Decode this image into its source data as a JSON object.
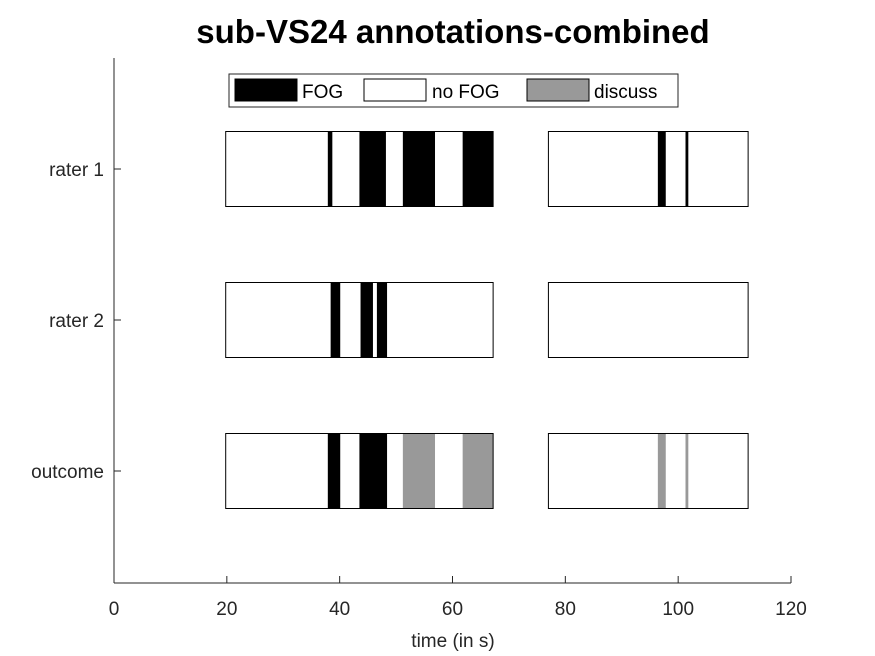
{
  "chart_data": {
    "type": "broken-bar",
    "title": "sub-VS24 annotations-combined",
    "xlabel": "time (in s)",
    "ylabel": "",
    "xlim": [
      0,
      120
    ],
    "xticks": [
      0,
      20,
      40,
      60,
      80,
      100,
      120
    ],
    "grid": false,
    "legend_position": "top-center",
    "legend": [
      {
        "label": "FOG",
        "color": "#000000"
      },
      {
        "label": "no FOG",
        "color": "#ffffff"
      },
      {
        "label": "discuss",
        "color": "#999999"
      }
    ],
    "windows": [
      [
        19.8,
        67.2
      ],
      [
        77.0,
        112.4
      ]
    ],
    "rows": [
      {
        "label": "rater 1",
        "segments": [
          {
            "start": 37.9,
            "end": 38.7,
            "class": "FOG"
          },
          {
            "start": 43.5,
            "end": 48.2,
            "class": "FOG"
          },
          {
            "start": 51.2,
            "end": 56.9,
            "class": "FOG"
          },
          {
            "start": 61.8,
            "end": 67.2,
            "class": "FOG"
          },
          {
            "start": 96.4,
            "end": 97.8,
            "class": "FOG"
          },
          {
            "start": 101.3,
            "end": 101.8,
            "class": "FOG"
          }
        ]
      },
      {
        "label": "rater 2",
        "segments": [
          {
            "start": 38.4,
            "end": 40.1,
            "class": "FOG"
          },
          {
            "start": 43.7,
            "end": 45.9,
            "class": "FOG"
          },
          {
            "start": 46.6,
            "end": 48.4,
            "class": "FOG"
          }
        ]
      },
      {
        "label": "outcome",
        "segments": [
          {
            "start": 37.9,
            "end": 40.1,
            "class": "FOG"
          },
          {
            "start": 43.5,
            "end": 48.4,
            "class": "FOG"
          },
          {
            "start": 51.2,
            "end": 56.9,
            "class": "discuss"
          },
          {
            "start": 61.8,
            "end": 67.2,
            "class": "discuss"
          },
          {
            "start": 96.4,
            "end": 97.8,
            "class": "discuss"
          },
          {
            "start": 101.3,
            "end": 101.8,
            "class": "discuss"
          }
        ]
      }
    ]
  }
}
